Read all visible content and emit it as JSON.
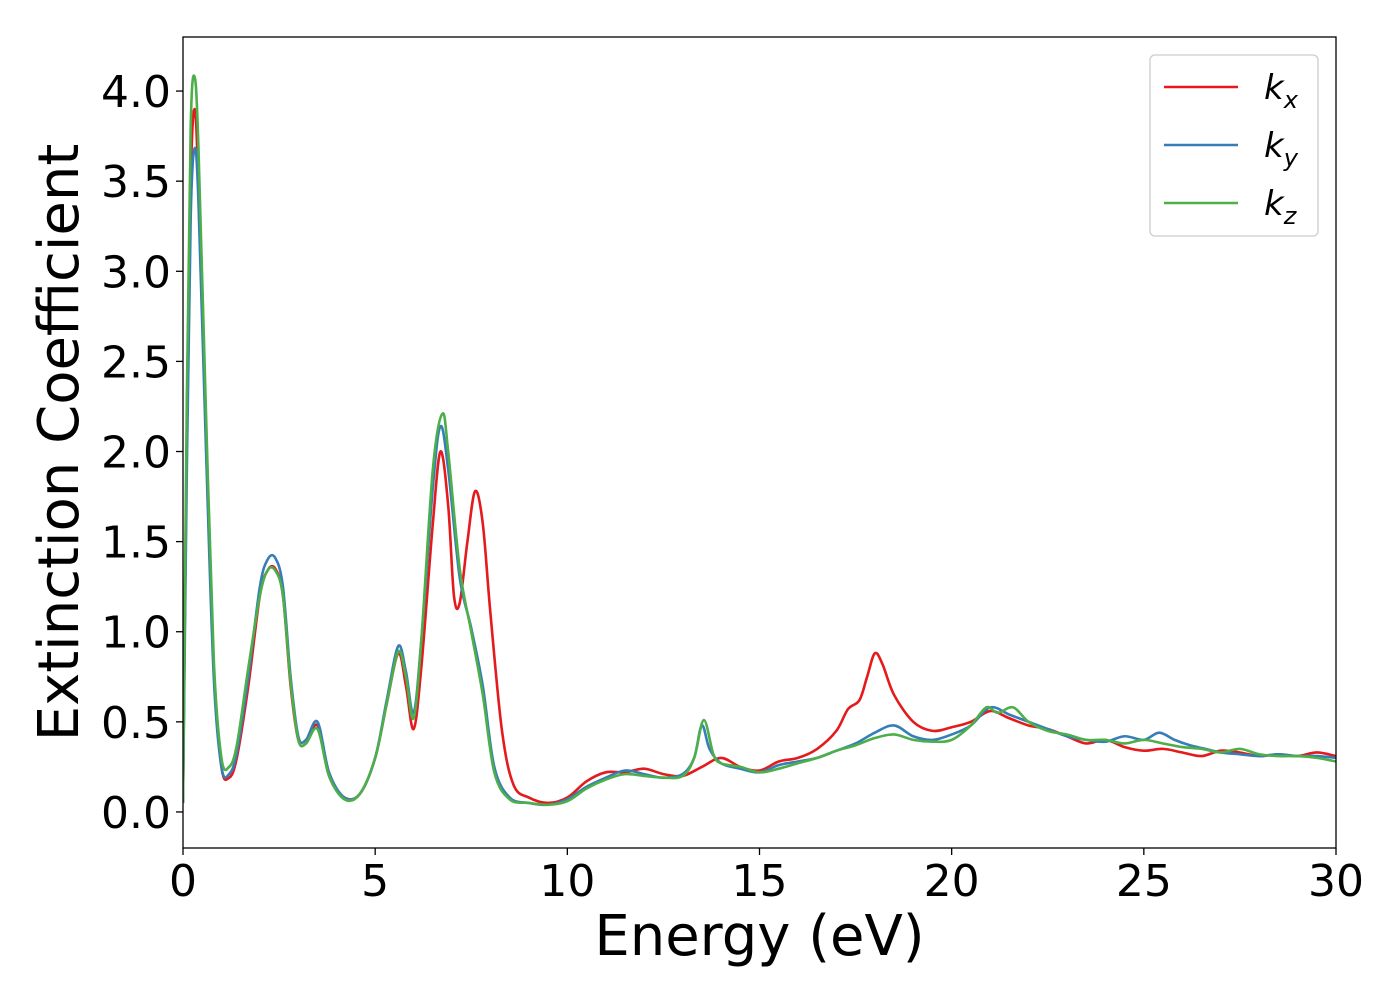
{
  "chart_data": {
    "type": "line",
    "xlabel": "Energy (eV)",
    "ylabel": "Extinction Coefficient",
    "xlim": [
      0,
      30
    ],
    "ylim": [
      -0.2,
      4.3
    ],
    "xticks": [
      0,
      5,
      10,
      15,
      20,
      25,
      30
    ],
    "xtick_labels": [
      "0",
      "5",
      "10",
      "15",
      "20",
      "25",
      "30"
    ],
    "yticks": [
      0.0,
      0.5,
      1.0,
      1.5,
      2.0,
      2.5,
      3.0,
      3.5,
      4.0
    ],
    "ytick_labels": [
      "0.0",
      "0.5",
      "1.0",
      "1.5",
      "2.0",
      "2.5",
      "3.0",
      "3.5",
      "4.0"
    ],
    "grid": false,
    "legend_position": "top-right",
    "series": [
      {
        "name": "k_x",
        "label_main": "k",
        "label_sub": "x",
        "color": "#e41a1c",
        "x": [
          0,
          0.1,
          0.2,
          0.3,
          0.4,
          0.6,
          0.8,
          1.0,
          1.2,
          1.4,
          1.7,
          2.0,
          2.2,
          2.4,
          2.6,
          2.8,
          3.0,
          3.2,
          3.5,
          3.8,
          4.2,
          4.6,
          5.0,
          5.3,
          5.6,
          5.8,
          6.0,
          6.2,
          6.5,
          6.7,
          6.9,
          7.05,
          7.2,
          7.4,
          7.6,
          7.8,
          8.0,
          8.3,
          8.6,
          9.0,
          9.5,
          10.0,
          10.5,
          11.0,
          11.5,
          12.0,
          12.5,
          13.0,
          13.5,
          14.0,
          14.5,
          15.0,
          15.5,
          16.0,
          16.5,
          17.0,
          17.3,
          17.6,
          17.8,
          18.0,
          18.2,
          18.5,
          19.0,
          19.5,
          20.0,
          20.5,
          21.0,
          21.5,
          22.0,
          22.5,
          23.0,
          23.5,
          24.0,
          24.5,
          25.0,
          25.5,
          26.0,
          26.5,
          27.0,
          27.5,
          28.0,
          28.5,
          29.0,
          29.5,
          30.0
        ],
        "y": [
          0.05,
          2.1,
          3.5,
          3.9,
          3.5,
          2.1,
          0.8,
          0.25,
          0.19,
          0.3,
          0.7,
          1.2,
          1.34,
          1.35,
          1.2,
          0.7,
          0.4,
          0.38,
          0.48,
          0.2,
          0.08,
          0.1,
          0.3,
          0.6,
          0.88,
          0.7,
          0.46,
          0.8,
          1.6,
          2.0,
          1.7,
          1.2,
          1.16,
          1.5,
          1.78,
          1.6,
          1.1,
          0.45,
          0.15,
          0.08,
          0.05,
          0.08,
          0.17,
          0.22,
          0.22,
          0.24,
          0.21,
          0.2,
          0.25,
          0.3,
          0.25,
          0.23,
          0.28,
          0.3,
          0.35,
          0.45,
          0.57,
          0.62,
          0.75,
          0.88,
          0.82,
          0.65,
          0.5,
          0.45,
          0.47,
          0.5,
          0.56,
          0.52,
          0.48,
          0.46,
          0.42,
          0.38,
          0.4,
          0.36,
          0.34,
          0.35,
          0.33,
          0.31,
          0.34,
          0.33,
          0.31,
          0.32,
          0.31,
          0.33,
          0.31
        ]
      },
      {
        "name": "k_y",
        "label_main": "k",
        "label_sub": "y",
        "color": "#377eb8",
        "x": [
          0,
          0.1,
          0.2,
          0.3,
          0.4,
          0.6,
          0.8,
          1.0,
          1.2,
          1.4,
          1.7,
          2.0,
          2.2,
          2.4,
          2.6,
          2.8,
          3.0,
          3.2,
          3.5,
          3.8,
          4.2,
          4.6,
          5.0,
          5.3,
          5.6,
          5.8,
          6.0,
          6.2,
          6.5,
          6.7,
          6.9,
          7.2,
          7.5,
          7.8,
          8.1,
          8.5,
          9.0,
          9.5,
          10.0,
          10.5,
          11.0,
          11.5,
          12.0,
          12.5,
          13.0,
          13.3,
          13.5,
          13.7,
          14.0,
          14.5,
          15.0,
          15.5,
          16.0,
          16.5,
          17.0,
          17.5,
          18.0,
          18.5,
          19.0,
          19.5,
          20.0,
          20.5,
          21.0,
          21.5,
          22.0,
          22.5,
          23.0,
          23.5,
          24.0,
          24.5,
          25.0,
          25.4,
          25.8,
          26.2,
          26.6,
          27.0,
          27.5,
          28.0,
          28.5,
          29.0,
          29.5,
          30.0
        ],
        "y": [
          0.05,
          1.9,
          3.3,
          3.68,
          3.4,
          2.0,
          0.75,
          0.25,
          0.21,
          0.33,
          0.75,
          1.25,
          1.4,
          1.41,
          1.25,
          0.75,
          0.42,
          0.4,
          0.5,
          0.22,
          0.08,
          0.1,
          0.3,
          0.62,
          0.92,
          0.78,
          0.55,
          0.95,
          1.8,
          2.14,
          1.9,
          1.3,
          1.02,
          0.7,
          0.25,
          0.08,
          0.05,
          0.04,
          0.07,
          0.14,
          0.19,
          0.23,
          0.21,
          0.19,
          0.21,
          0.3,
          0.48,
          0.35,
          0.27,
          0.24,
          0.22,
          0.26,
          0.28,
          0.3,
          0.34,
          0.38,
          0.44,
          0.48,
          0.42,
          0.4,
          0.43,
          0.48,
          0.58,
          0.54,
          0.5,
          0.46,
          0.42,
          0.4,
          0.39,
          0.42,
          0.4,
          0.44,
          0.4,
          0.37,
          0.35,
          0.33,
          0.32,
          0.31,
          0.32,
          0.31,
          0.31,
          0.3
        ]
      },
      {
        "name": "k_z",
        "label_main": "k",
        "label_sub": "z",
        "color": "#4daf4a",
        "x": [
          0,
          0.1,
          0.2,
          0.3,
          0.4,
          0.6,
          0.8,
          1.0,
          1.2,
          1.4,
          1.7,
          2.0,
          2.2,
          2.4,
          2.6,
          2.8,
          3.0,
          3.2,
          3.5,
          3.8,
          4.2,
          4.6,
          5.0,
          5.3,
          5.6,
          5.8,
          6.0,
          6.2,
          6.5,
          6.75,
          6.9,
          7.2,
          7.5,
          7.8,
          8.1,
          8.5,
          9.0,
          9.5,
          10.0,
          10.5,
          11.0,
          11.5,
          12.0,
          12.5,
          13.0,
          13.3,
          13.55,
          13.8,
          14.0,
          14.5,
          15.0,
          15.5,
          16.0,
          16.5,
          17.0,
          17.5,
          18.0,
          18.5,
          19.0,
          19.5,
          20.0,
          20.5,
          20.9,
          21.2,
          21.6,
          22.0,
          22.5,
          23.0,
          23.5,
          24.0,
          24.5,
          25.0,
          25.5,
          26.0,
          26.5,
          27.0,
          27.5,
          28.0,
          28.5,
          29.0,
          29.5,
          30.0
        ],
        "y": [
          0.05,
          2.3,
          3.8,
          4.08,
          3.7,
          2.2,
          0.85,
          0.3,
          0.25,
          0.37,
          0.8,
          1.2,
          1.34,
          1.34,
          1.2,
          0.72,
          0.4,
          0.38,
          0.46,
          0.2,
          0.07,
          0.1,
          0.3,
          0.6,
          0.89,
          0.75,
          0.52,
          0.95,
          1.9,
          2.21,
          2.0,
          1.35,
          1.0,
          0.65,
          0.22,
          0.07,
          0.05,
          0.04,
          0.06,
          0.13,
          0.18,
          0.21,
          0.2,
          0.19,
          0.2,
          0.3,
          0.51,
          0.32,
          0.27,
          0.25,
          0.22,
          0.24,
          0.27,
          0.3,
          0.34,
          0.37,
          0.41,
          0.43,
          0.4,
          0.39,
          0.4,
          0.48,
          0.58,
          0.55,
          0.58,
          0.5,
          0.45,
          0.43,
          0.4,
          0.4,
          0.38,
          0.4,
          0.38,
          0.36,
          0.35,
          0.33,
          0.35,
          0.32,
          0.31,
          0.31,
          0.3,
          0.28
        ]
      }
    ]
  }
}
